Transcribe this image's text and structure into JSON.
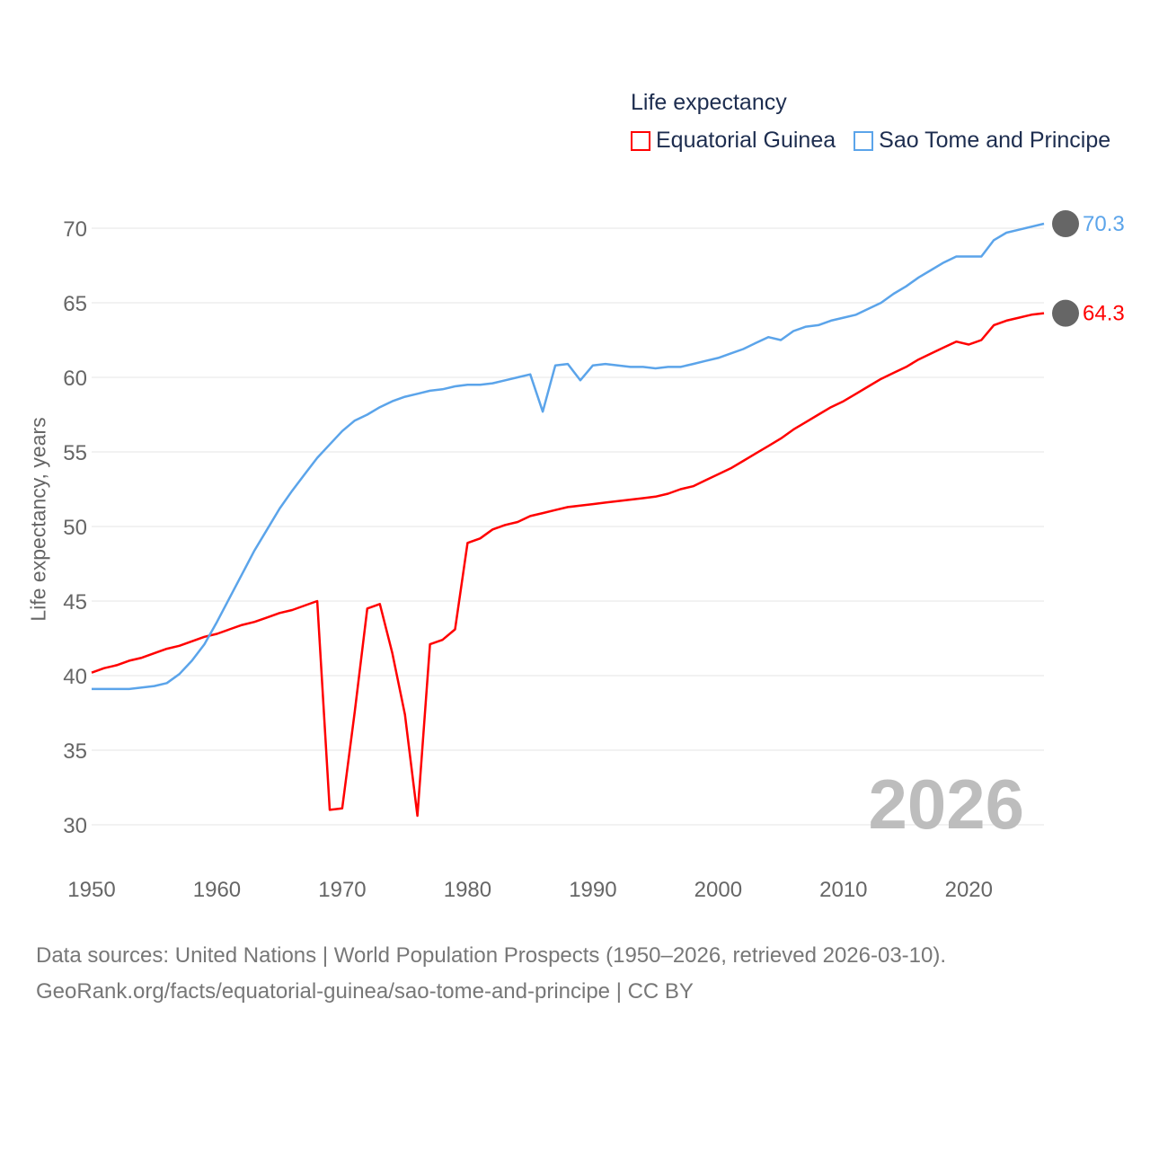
{
  "chart_data": {
    "type": "line",
    "title": "Life expectancy",
    "xlabel": "",
    "ylabel": "Life expectancy, years",
    "xlim": [
      1950,
      2026
    ],
    "ylim": [
      30,
      70
    ],
    "x_ticks": [
      "1950",
      "1960",
      "1970",
      "1980",
      "1990",
      "2000",
      "2010",
      "2020"
    ],
    "y_ticks": [
      "30",
      "35",
      "40",
      "45",
      "50",
      "55",
      "60",
      "65",
      "70"
    ],
    "grid": true,
    "legend_position": "top-right",
    "current_year": "2026",
    "x_start": 1950,
    "series": [
      {
        "name": "Equatorial Guinea",
        "color": "#ff0000",
        "end_label": "64.3",
        "values": [
          40.2,
          40.5,
          40.7,
          41.0,
          41.2,
          41.5,
          41.8,
          42.0,
          42.3,
          42.6,
          42.8,
          43.1,
          43.4,
          43.6,
          43.9,
          44.2,
          44.4,
          44.7,
          45.0,
          31.0,
          31.1,
          37.6,
          44.5,
          44.8,
          41.5,
          37.4,
          30.6,
          42.1,
          42.4,
          43.1,
          48.9,
          49.2,
          49.8,
          50.1,
          50.3,
          50.7,
          50.9,
          51.1,
          51.3,
          51.4,
          51.5,
          51.6,
          51.7,
          51.8,
          51.9,
          52.0,
          52.2,
          52.5,
          52.7,
          53.1,
          53.5,
          53.9,
          54.4,
          54.9,
          55.4,
          55.9,
          56.5,
          57.0,
          57.5,
          58.0,
          58.4,
          58.9,
          59.4,
          59.9,
          60.3,
          60.7,
          61.2,
          61.6,
          62.0,
          62.4,
          62.2,
          62.5,
          63.5,
          63.8,
          64.0,
          64.2,
          64.3
        ]
      },
      {
        "name": "Sao Tome and Principe",
        "color": "#5ba4ea",
        "end_label": "70.3",
        "values": [
          39.1,
          39.1,
          39.1,
          39.1,
          39.2,
          39.3,
          39.5,
          40.1,
          41.0,
          42.1,
          43.6,
          45.2,
          46.8,
          48.4,
          49.8,
          51.2,
          52.4,
          53.5,
          54.6,
          55.5,
          56.4,
          57.1,
          57.5,
          58.0,
          58.4,
          58.7,
          58.9,
          59.1,
          59.2,
          59.4,
          59.5,
          59.5,
          59.6,
          59.8,
          60.0,
          60.2,
          57.7,
          60.8,
          60.9,
          59.8,
          60.8,
          60.9,
          60.8,
          60.7,
          60.7,
          60.6,
          60.7,
          60.7,
          60.9,
          61.1,
          61.3,
          61.6,
          61.9,
          62.3,
          62.7,
          62.5,
          63.1,
          63.4,
          63.5,
          63.8,
          64.0,
          64.2,
          64.6,
          65.0,
          65.6,
          66.1,
          66.7,
          67.2,
          67.7,
          68.1,
          68.1,
          68.1,
          69.2,
          69.7,
          69.9,
          70.1,
          70.3
        ]
      }
    ]
  },
  "source": {
    "line1": "Data sources: United Nations | World Population Prospects (1950–2026, retrieved 2026-03-10).",
    "line2": "GeoRank.org/facts/equatorial-guinea/sao-tome-and-principe | CC BY"
  }
}
